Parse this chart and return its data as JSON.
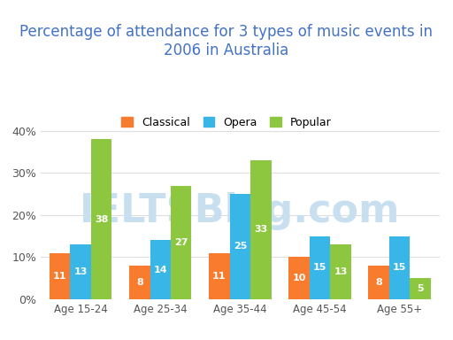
{
  "title": "Percentage of attendance for 3 types of music events in\n2006 in Australia",
  "categories": [
    "Age 15-24",
    "Age 25-34",
    "Age 35-44",
    "Age 45-54",
    "Age 55+"
  ],
  "series": {
    "Classical": [
      11,
      8,
      11,
      10,
      8
    ],
    "Opera": [
      13,
      14,
      25,
      15,
      15
    ],
    "Popular": [
      38,
      27,
      33,
      13,
      5
    ]
  },
  "colors": {
    "Classical": "#F97B2E",
    "Opera": "#38B6E8",
    "Popular": "#8DC63F"
  },
  "ylim": [
    0,
    42
  ],
  "yticks": [
    0,
    10,
    20,
    30,
    40
  ],
  "ytick_labels": [
    "0%",
    "10%",
    "20%",
    "30%",
    "40%"
  ],
  "legend_order": [
    "Classical",
    "Opera",
    "Popular"
  ],
  "bar_label_color": "#ffffff",
  "bar_label_fontsize": 8,
  "title_fontsize": 12,
  "title_color": "#4472C4",
  "background_color": "#ffffff",
  "grid_color": "#dddddd",
  "watermark": "IELTSBlog.com",
  "watermark_color": "#c8dff0",
  "watermark_fontsize": 32
}
